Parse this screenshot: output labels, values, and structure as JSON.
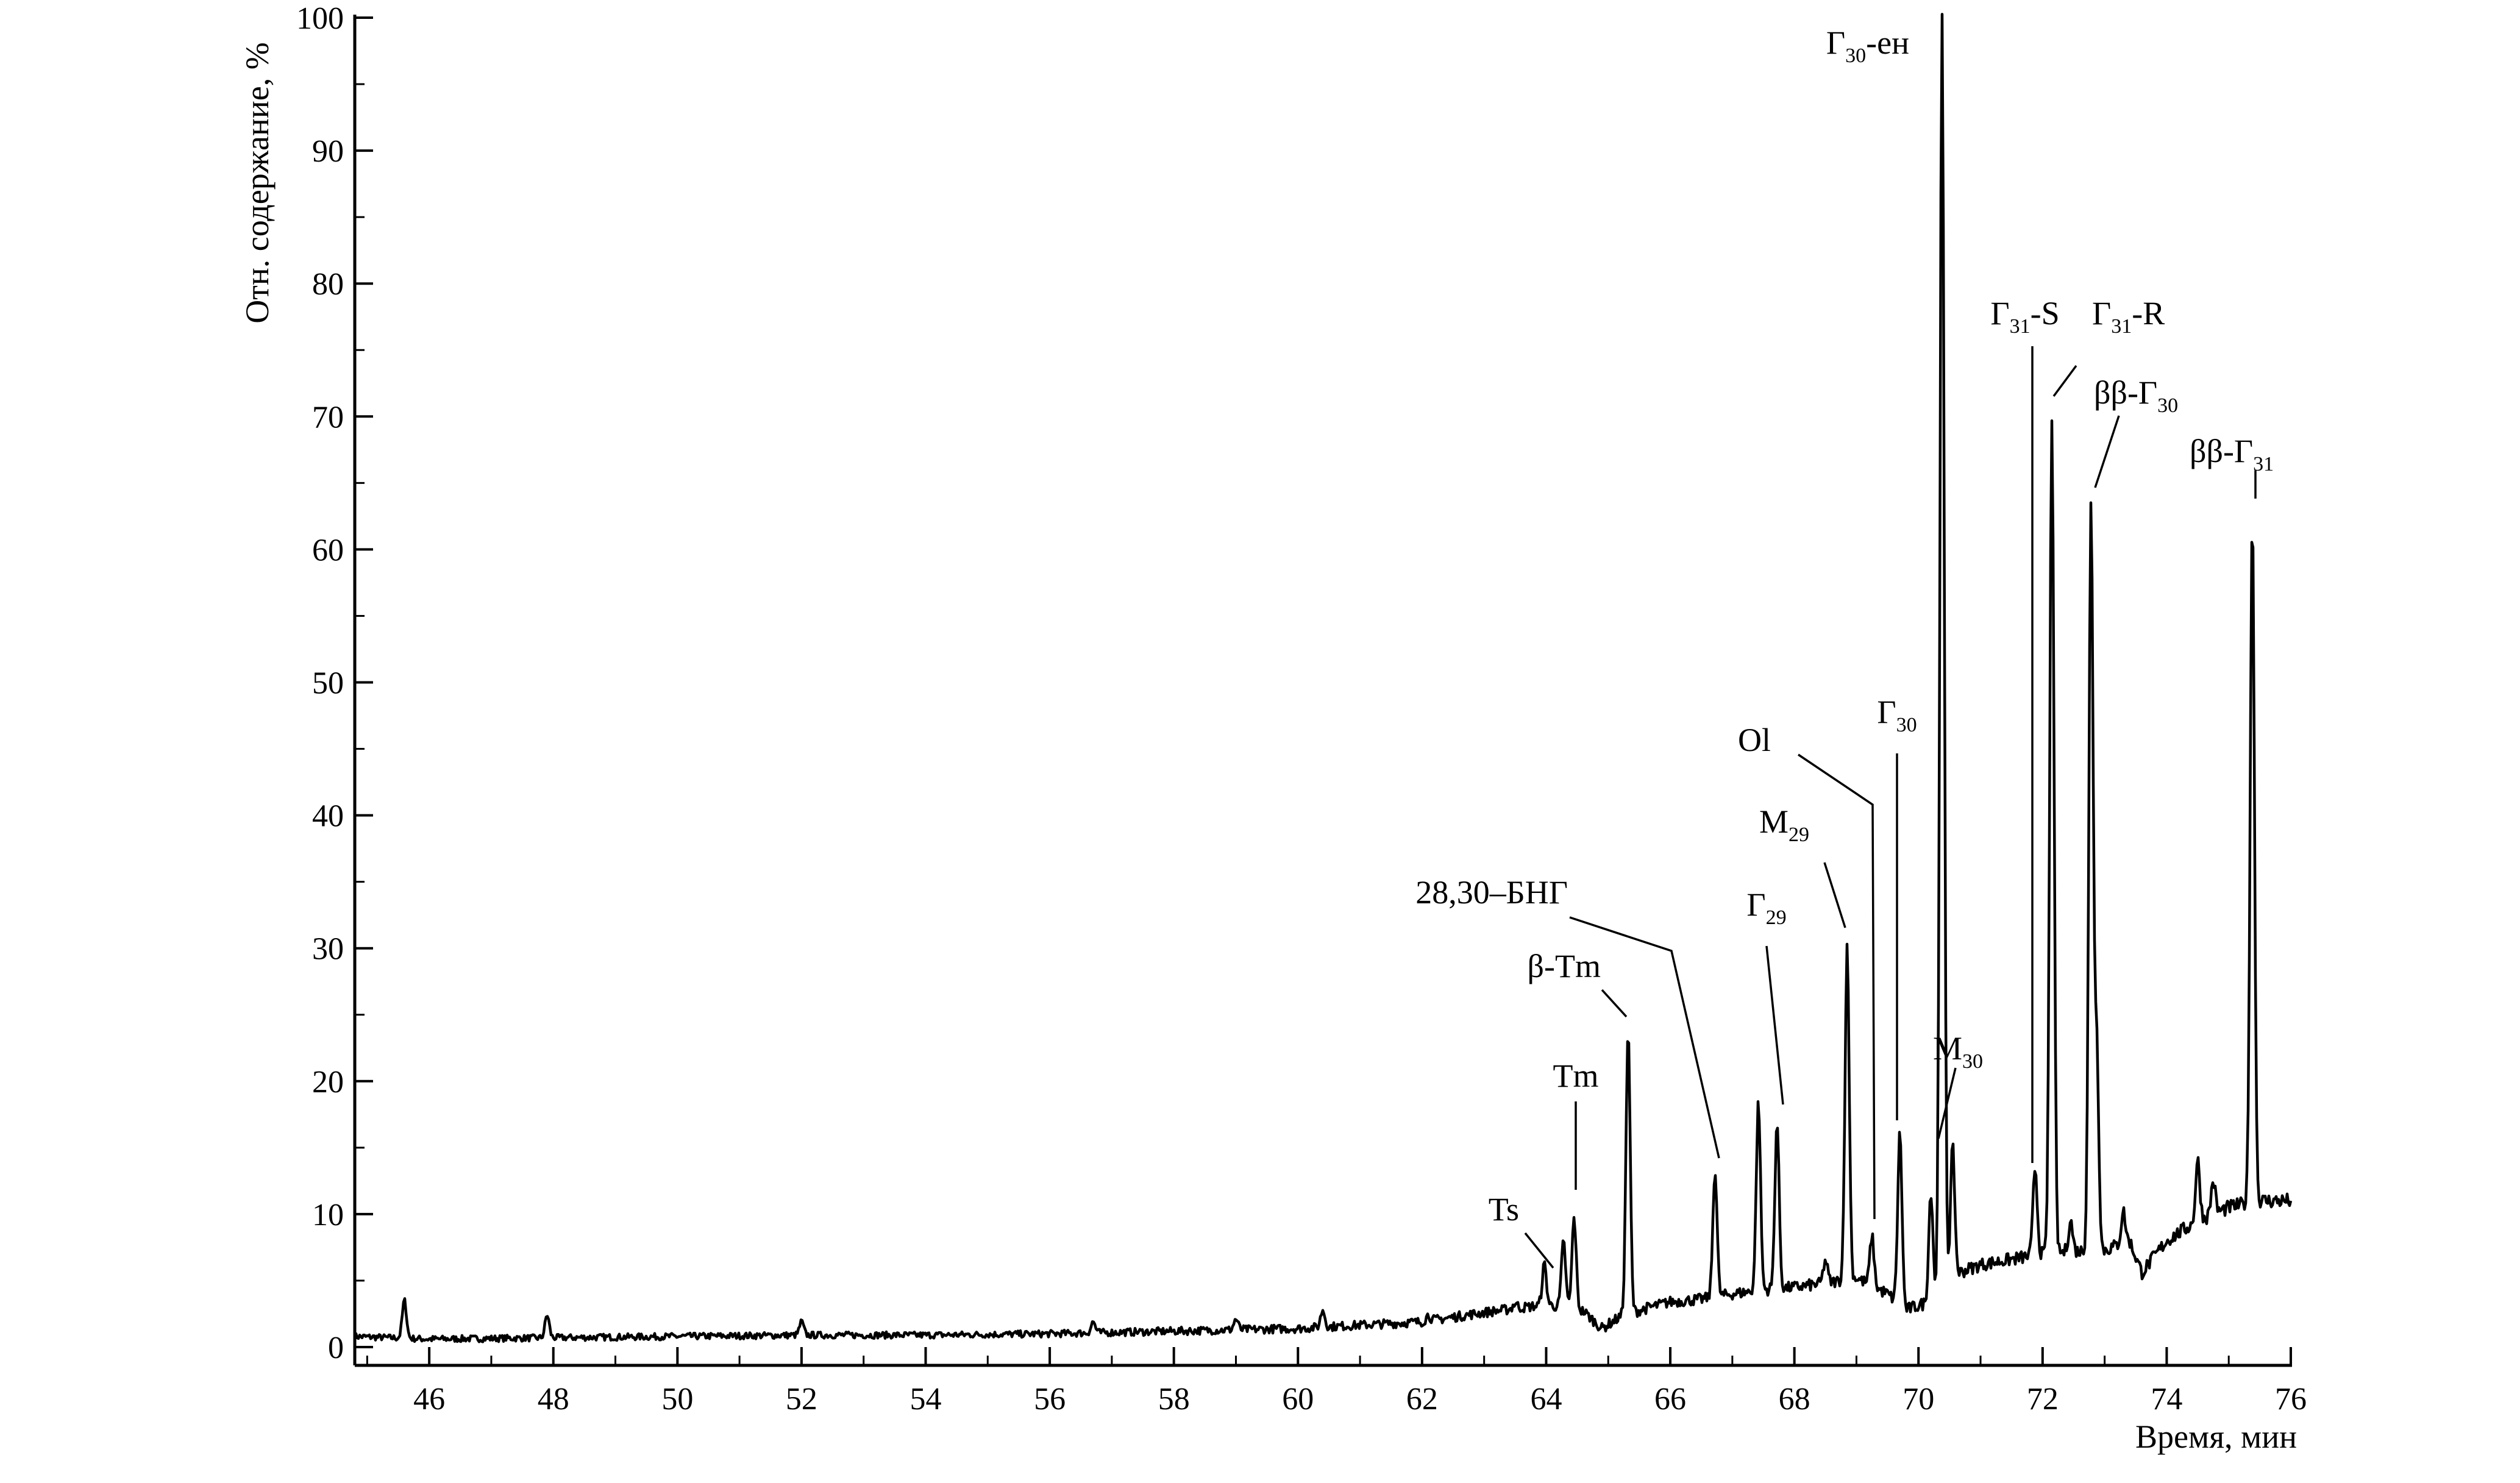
{
  "chart_data": {
    "type": "line",
    "title": "",
    "xlabel": "Время, мин",
    "ylabel": "Отн. содержание, %",
    "xlim": [
      44.8,
      76
    ],
    "ylim": [
      0,
      100
    ],
    "x_ticks": [
      "46",
      "48",
      "50",
      "52",
      "54",
      "56",
      "58",
      "60",
      "62",
      "64",
      "66",
      "68",
      "70",
      "72",
      "74",
      "76"
    ],
    "y_ticks": [
      "0",
      "10",
      "20",
      "30",
      "40",
      "50",
      "60",
      "70",
      "80",
      "90",
      "100"
    ],
    "grid": false,
    "legend": "none",
    "line_color": "#000000",
    "series": [
      {
        "baseline": [
          [
            44.8,
            0.8
          ],
          [
            46,
            0.6
          ],
          [
            48,
            0.7
          ],
          [
            50,
            0.8
          ],
          [
            52,
            0.9
          ],
          [
            54,
            0.9
          ],
          [
            56,
            1.0
          ],
          [
            58,
            1.2
          ],
          [
            60,
            1.4
          ],
          [
            62,
            1.9
          ],
          [
            63,
            2.6
          ],
          [
            64,
            3.2
          ],
          [
            64.6,
            2.7
          ],
          [
            64.9,
            1.4
          ],
          [
            65.2,
            2.3
          ],
          [
            65.6,
            2.9
          ],
          [
            66,
            3.4
          ],
          [
            66.5,
            3.6
          ],
          [
            67,
            4.0
          ],
          [
            67.5,
            4.3
          ],
          [
            68,
            4.5
          ],
          [
            68.5,
            4.8
          ],
          [
            69,
            5.2
          ],
          [
            69.5,
            4.0
          ],
          [
            69.8,
            2.8
          ],
          [
            70.3,
            3.6
          ],
          [
            70.6,
            5.5
          ],
          [
            71,
            6.2
          ],
          [
            71.5,
            6.6
          ],
          [
            72,
            7.0
          ],
          [
            72.5,
            7.2
          ],
          [
            73,
            7.3
          ],
          [
            73.4,
            8.0
          ],
          [
            73.6,
            5.6
          ],
          [
            74,
            8.0
          ],
          [
            74.5,
            9.5
          ],
          [
            75,
            10.5
          ],
          [
            75.5,
            11.0
          ],
          [
            76,
            11.0
          ]
        ],
        "peaks": [
          [
            45.6,
            3.5
          ],
          [
            47.9,
            2.4
          ],
          [
            52.0,
            1.9
          ],
          [
            56.7,
            1.9
          ],
          [
            59.0,
            2.1
          ],
          [
            60.4,
            2.8
          ],
          [
            62.1,
            2.4
          ],
          [
            63.5,
            3.3
          ],
          [
            63.97,
            6.2
          ],
          [
            64.28,
            7.9
          ],
          [
            64.45,
            9.7
          ],
          [
            65.32,
            23.7
          ],
          [
            66.72,
            13.3
          ],
          [
            67.42,
            18.4
          ],
          [
            67.72,
            16.9
          ],
          [
            68.5,
            6.5
          ],
          [
            68.85,
            30.0
          ],
          [
            69.25,
            8.3
          ],
          [
            69.7,
            16.1
          ],
          [
            70.2,
            11.7
          ],
          [
            70.38,
            100
          ],
          [
            70.55,
            15.0
          ],
          [
            71.88,
            13.5
          ],
          [
            72.15,
            70.0
          ],
          [
            72.45,
            9.5
          ],
          [
            72.78,
            63.0
          ],
          [
            72.87,
            23.0
          ],
          [
            73.3,
            10.2
          ],
          [
            74.5,
            14.0
          ],
          [
            74.75,
            12.5
          ],
          [
            75.38,
            62.5
          ]
        ]
      }
    ],
    "peak_labels": [
      {
        "base": "Ts",
        "sub": "",
        "suffix": "",
        "x": 64.0,
        "y": 6.3
      },
      {
        "base": "Tm",
        "sub": "",
        "suffix": "",
        "x": 64.45,
        "y": 9.7
      },
      {
        "base": "β-Tm",
        "sub": "",
        "suffix": "",
        "x": 65.32,
        "y": 23.7
      },
      {
        "base": "28,30–БНГ",
        "sub": "",
        "suffix": "",
        "x": 66.72,
        "y": 13.3
      },
      {
        "base": "Г",
        "sub": "29",
        "suffix": "",
        "x": 67.72,
        "y": 16.9
      },
      {
        "base": "M",
        "sub": "29",
        "suffix": "",
        "x": 68.85,
        "y": 30.0
      },
      {
        "base": "Ol",
        "sub": "",
        "suffix": "",
        "x": 69.25,
        "y": 8.3
      },
      {
        "base": "Г",
        "sub": "30",
        "suffix": "",
        "x": 69.7,
        "y": 16.1
      },
      {
        "base": "Г",
        "sub": "30",
        "suffix": "-ен",
        "x": 70.38,
        "y": 100
      },
      {
        "base": "M",
        "sub": "30",
        "suffix": "",
        "x": 70.55,
        "y": 15.0
      },
      {
        "base": "Г",
        "sub": "31",
        "suffix": "-S",
        "x": 71.88,
        "y": 13.5
      },
      {
        "base": "Г",
        "sub": "31",
        "suffix": "-R",
        "x": 72.15,
        "y": 70.0
      },
      {
        "base": "ββ-Г",
        "sub": "30",
        "suffix": "",
        "x": 72.78,
        "y": 63.0
      },
      {
        "base": "ββ-Г",
        "sub": "31",
        "suffix": "",
        "x": 75.38,
        "y": 62.5
      }
    ]
  }
}
